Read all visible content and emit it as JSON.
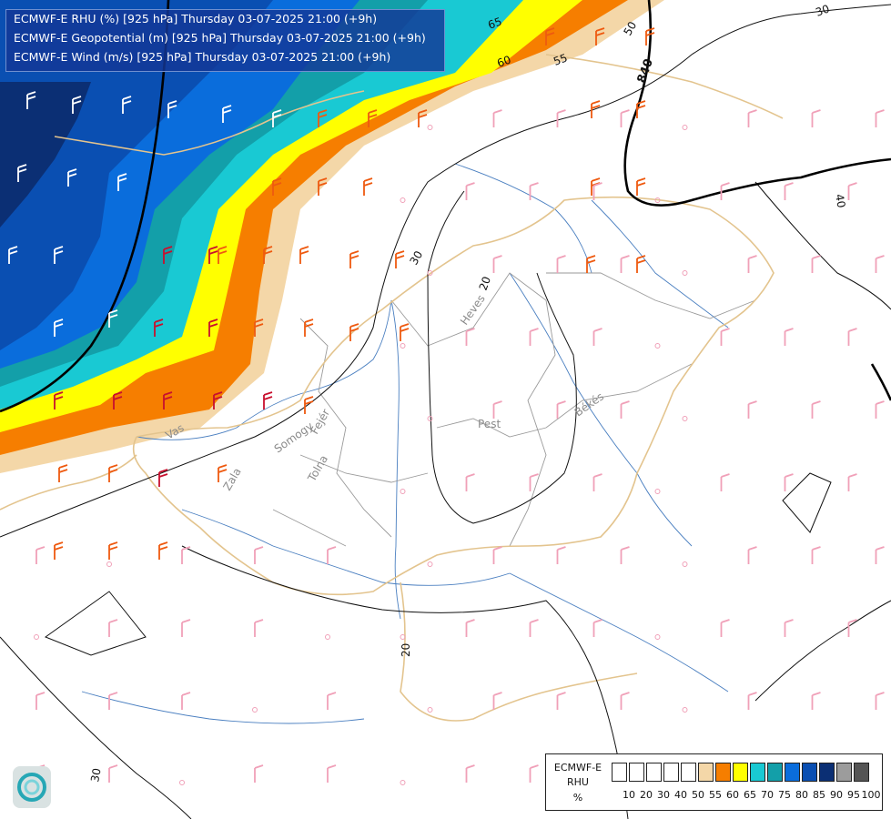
{
  "header": {
    "line1": "ECMWF-E RHU (%) [925 hPa] Thursday 03-07-2025 21:00 (+9h)",
    "line2": "ECMWF-E Geopotential (m) [925 hPa] Thursday 03-07-2025 21:00 (+9h)",
    "line3": "ECMWF-E Wind (m/s) [925 hPa] Thursday 03-07-2025 21:00 (+9h)"
  },
  "legend": {
    "title_lines": [
      "ECMWF-E",
      "RHU",
      "%"
    ],
    "ticks": [
      "10",
      "20",
      "30",
      "40",
      "50",
      "55",
      "60",
      "65",
      "70",
      "75",
      "80",
      "85",
      "90",
      "95",
      "100"
    ],
    "colors": [
      "#ffffff",
      "#ffffff",
      "#ffffff",
      "#ffffff",
      "#ffffff",
      "#f4d7a8",
      "#f67e00",
      "#ffff00",
      "#19c9d3",
      "#139fa9",
      "#0a6ddc",
      "#0a4fb2",
      "#0b2f74",
      "#9c9c9c",
      "#555555"
    ]
  },
  "map": {
    "contour_labels": [
      {
        "text": "65",
        "color": "#111111"
      },
      {
        "text": "60",
        "color": "#111111"
      },
      {
        "text": "55",
        "color": "#111111"
      },
      {
        "text": "50",
        "color": "#111111"
      },
      {
        "text": "30",
        "color": "#111111"
      },
      {
        "text": "30",
        "color": "#111111"
      },
      {
        "text": "20",
        "color": "#111111"
      },
      {
        "text": "40",
        "color": "#111111"
      },
      {
        "text": "840",
        "color": "#111111"
      },
      {
        "text": "20",
        "color": "#111111"
      },
      {
        "text": "30",
        "color": "#111111"
      }
    ],
    "region_labels": [
      "Vas",
      "Zala",
      "Somogy",
      "Fejér",
      "Tolna",
      "Pest",
      "Békés",
      "Heves"
    ],
    "rhu_colors": {
      "c55": "#f4d7a8",
      "c60": "#f67e00",
      "c65": "#ffff00",
      "c70": "#19c9d3",
      "c75": "#139fa9",
      "c80": "#0a6ddc",
      "c85": "#0a4fb2",
      "c90": "#0b2f74"
    },
    "wind_barb_colors": {
      "calm": "#f0a0b8",
      "mid": "#ee5a10",
      "strong": "#c8102e",
      "dark_zone": "#ffffff"
    }
  }
}
